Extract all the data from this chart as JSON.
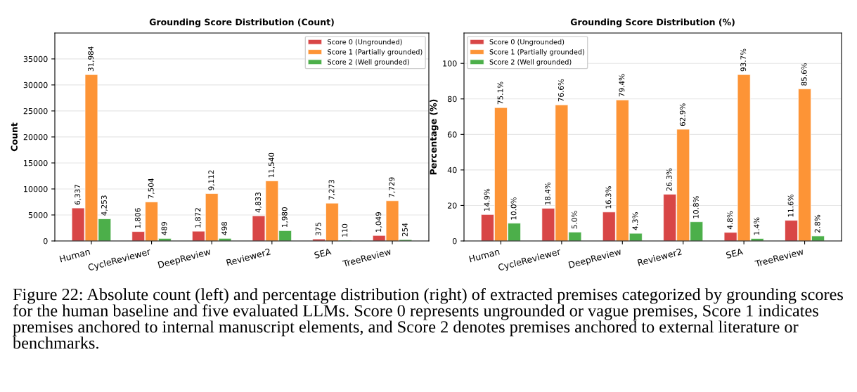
{
  "chart_data": [
    {
      "type": "bar",
      "title": "Grounding Score Distribution (Count)",
      "ylabel": "Count",
      "categories": [
        "Human",
        "CycleReviewer",
        "DeepReview",
        "Reviewer2",
        "SEA",
        "TreeReview"
      ],
      "series": [
        {
          "name": "Score 0 (Ungrounded)",
          "color": "#d84646",
          "values": [
            6337,
            1806,
            1872,
            4833,
            375,
            1049
          ],
          "value_labels": [
            "6,337",
            "1,806",
            "1,872",
            "4,833",
            "375",
            "1,049"
          ]
        },
        {
          "name": "Score 1 (Partially grounded)",
          "color": "#fd9436",
          "values": [
            31984,
            7504,
            9112,
            11540,
            7273,
            7729
          ],
          "value_labels": [
            "31,984",
            "7,504",
            "9,112",
            "11,540",
            "7,273",
            "7,729"
          ]
        },
        {
          "name": "Score 2 (Well grounded)",
          "color": "#4caf4a",
          "values": [
            4253,
            489,
            498,
            1980,
            110,
            254
          ],
          "value_labels": [
            "4,253",
            "489",
            "498",
            "1,980",
            "110",
            "254"
          ]
        }
      ],
      "ylim": [
        0,
        39980
      ],
      "yticks": [
        0,
        5000,
        10000,
        15000,
        20000,
        25000,
        30000,
        35000
      ],
      "grid": "y",
      "legend": "top right"
    },
    {
      "type": "bar",
      "title": "Grounding Score Distribution (%)",
      "ylabel": "Percentage (%)",
      "categories": [
        "Human",
        "CycleReviewer",
        "DeepReview",
        "Reviewer2",
        "SEA",
        "TreeReview"
      ],
      "series": [
        {
          "name": "Score 0 (Ungrounded)",
          "color": "#d84646",
          "values": [
            14.9,
            18.4,
            16.3,
            26.3,
            4.8,
            11.6
          ],
          "value_labels": [
            "14.9%",
            "18.4%",
            "16.3%",
            "26.3%",
            "4.8%",
            "11.6%"
          ]
        },
        {
          "name": "Score 1 (Partially grounded)",
          "color": "#fd9436",
          "values": [
            75.1,
            76.6,
            79.4,
            62.9,
            93.7,
            85.6
          ],
          "value_labels": [
            "75.1%",
            "76.6%",
            "79.4%",
            "62.9%",
            "93.7%",
            "85.6%"
          ]
        },
        {
          "name": "Score 2 (Well grounded)",
          "color": "#4caf4a",
          "values": [
            10.0,
            5.0,
            4.3,
            10.8,
            1.4,
            2.8
          ],
          "value_labels": [
            "10.0%",
            "5.0%",
            "4.3%",
            "10.8%",
            "1.4%",
            "2.8%"
          ]
        }
      ],
      "ylim": [
        0,
        117.1
      ],
      "yticks": [
        0,
        20,
        40,
        60,
        80,
        100
      ],
      "grid": "y",
      "legend": "top left",
      "annotations": [
        "Figure 22: Absolute count (left) and percentage distribution (right) of extracted premises categorized by grounding scores for the human baseline and five evaluated LLMs. Score 0 represents ungrounded or vague premises, Score 1 indicates premises anchored to internal manuscript elements, and Score 2 denotes premises anchored to external literature or benchmarks."
      ]
    }
  ]
}
